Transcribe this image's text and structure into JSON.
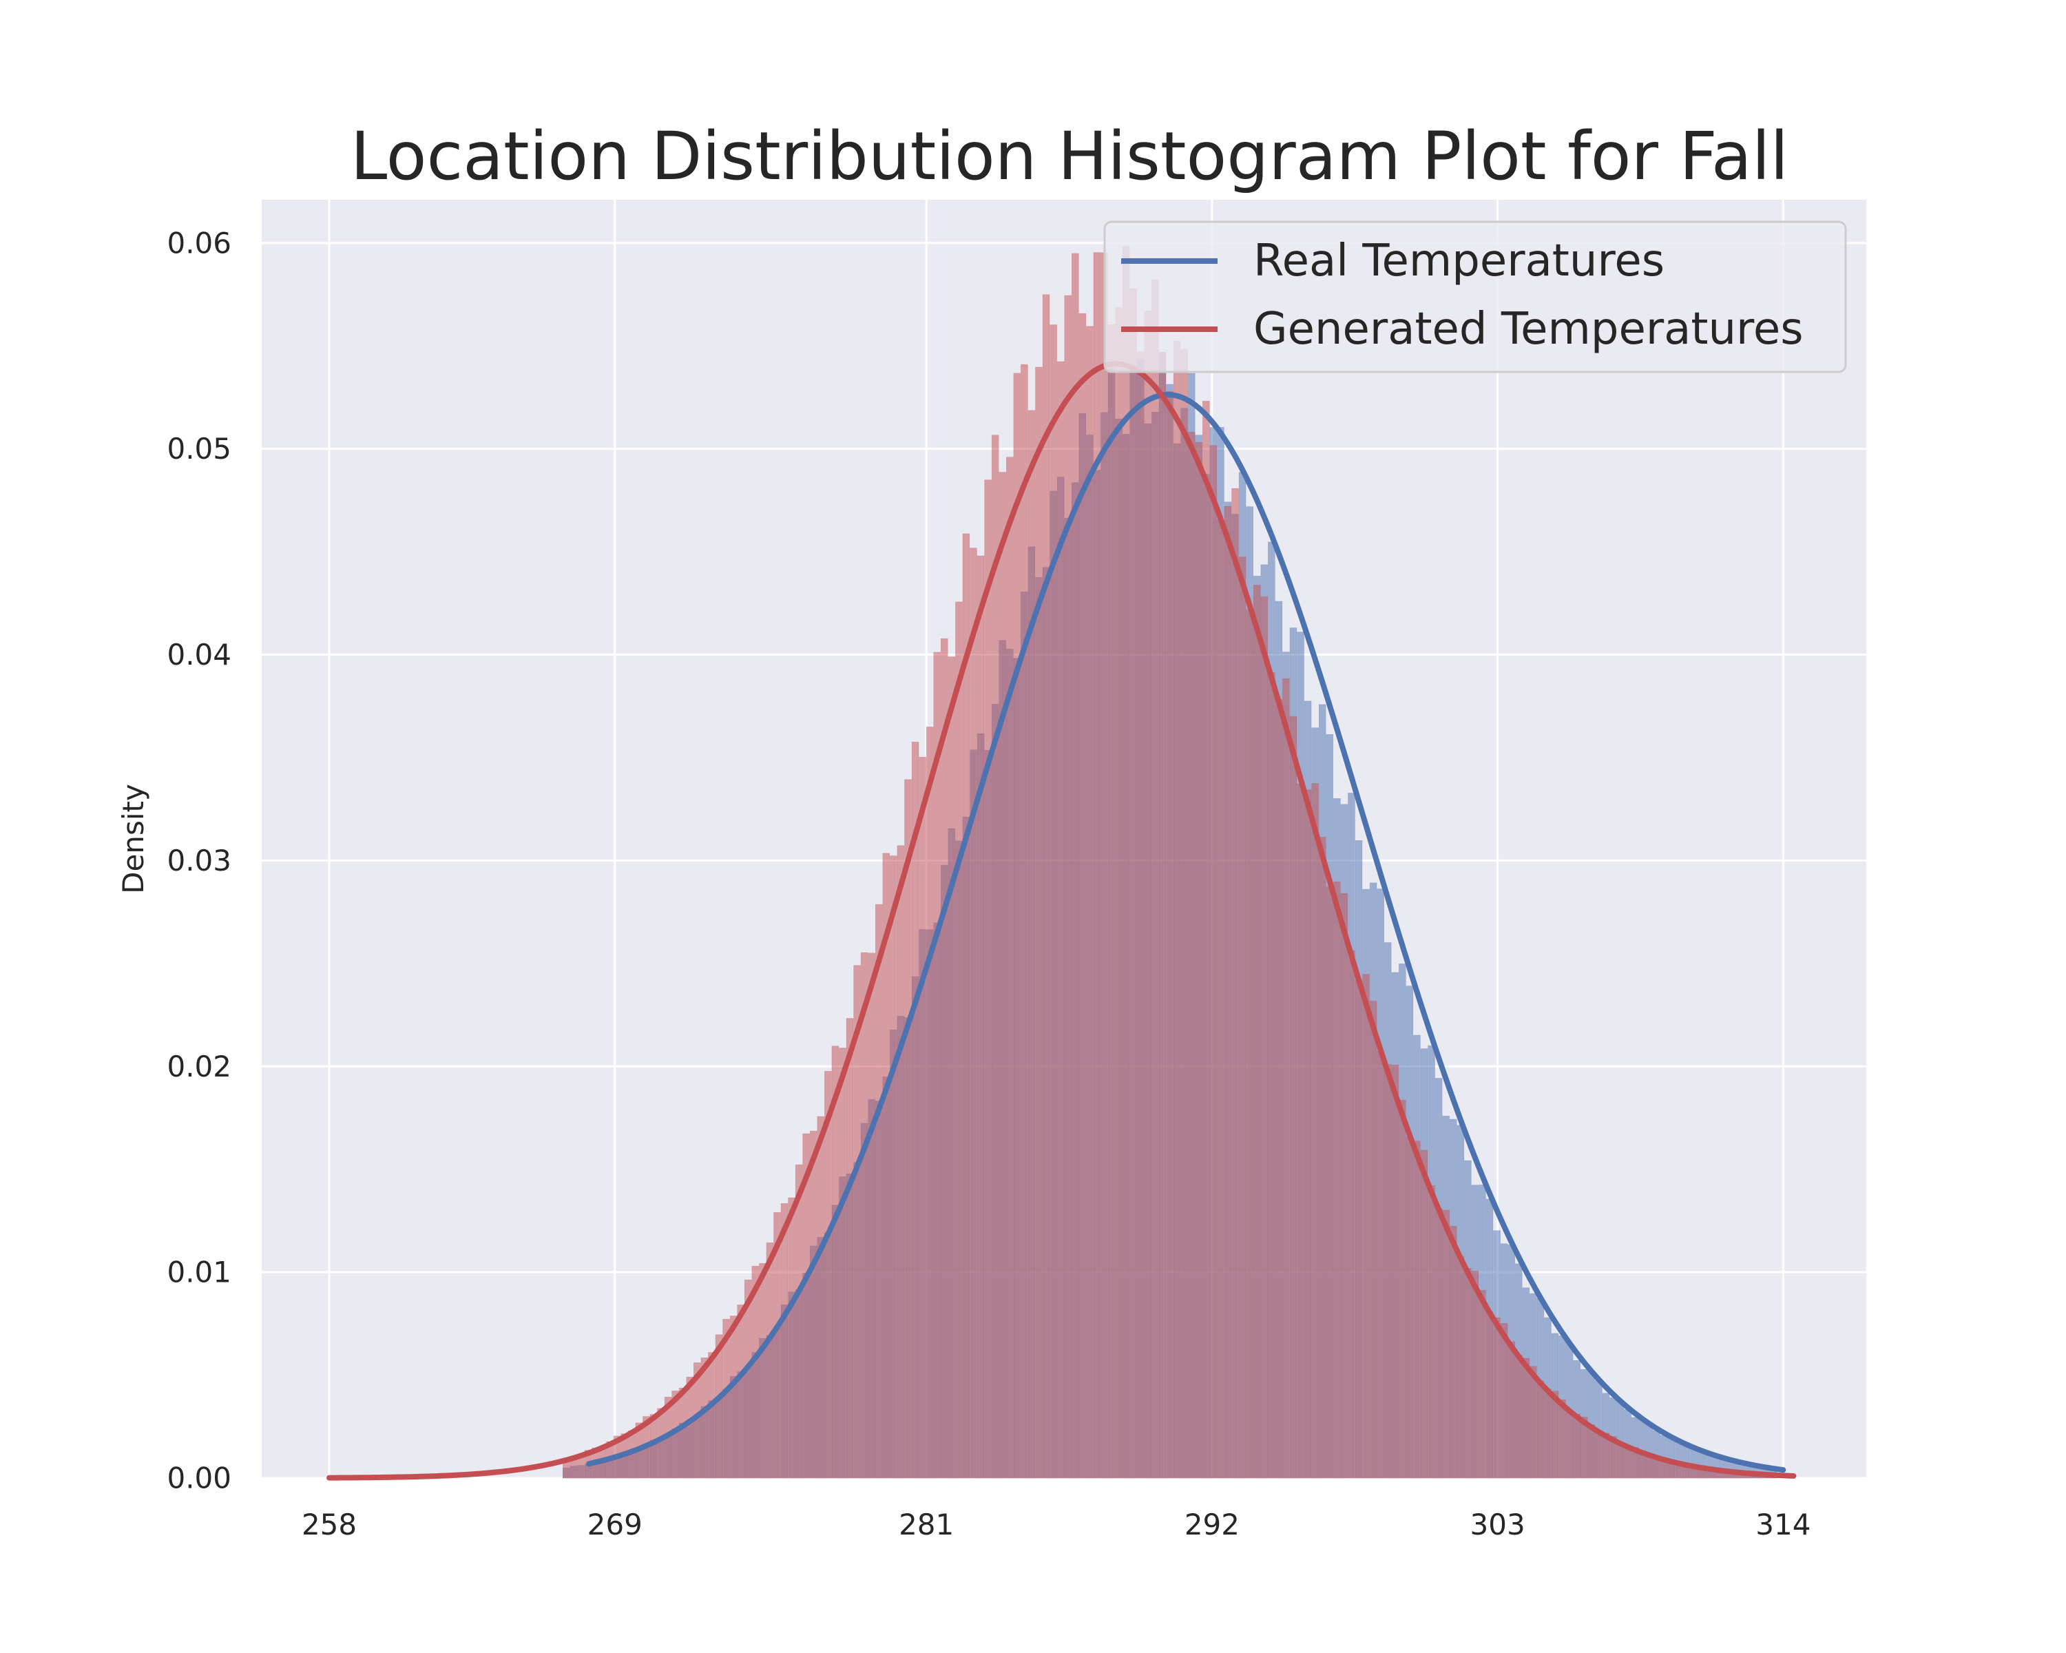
{
  "chart_data": {
    "type": "bar",
    "title": "Location Distribution Histogram Plot for Fall",
    "xlabel": "",
    "ylabel": "Density",
    "xlim": [
      255.4,
      317.2
    ],
    "ylim": [
      0,
      0.0621
    ],
    "x_ticks": [
      258,
      269,
      281,
      292,
      303,
      314
    ],
    "y_ticks": [
      0.0,
      0.01,
      0.02,
      0.03,
      0.04,
      0.05,
      0.06
    ],
    "x_tick_labels": [
      "258",
      "269",
      "281",
      "292",
      "303",
      "314"
    ],
    "y_tick_labels": [
      "0.00",
      "0.01",
      "0.02",
      "0.03",
      "0.04",
      "0.05",
      "0.06"
    ],
    "grid": true,
    "legend_position": "top-right",
    "legend": [
      "Real Temperatures",
      "Generated Temperatures"
    ],
    "histogram": {
      "x_range": [
        267.0,
        313.6
      ],
      "bin_width": 0.28,
      "bin_count": 167
    },
    "series": [
      {
        "name": "Real Temperatures",
        "color": "#4c72b0",
        "fit": "normal",
        "mean": 290.3,
        "std": 7.58,
        "peak_density": 0.0527,
        "curve_x_range": [
          268.0,
          314.0
        ]
      },
      {
        "name": "Generated Temperatures",
        "color": "#c44e52",
        "fit": "normal",
        "mean": 288.3,
        "std": 7.37,
        "peak_density": 0.0541,
        "curve_x_range": [
          258.0,
          314.4
        ]
      }
    ]
  },
  "colors": {
    "axes_background": "#eaeaf2",
    "grid": "#ffffff",
    "text": "#262626",
    "real": "#4c72b0",
    "generated": "#c44e52"
  }
}
